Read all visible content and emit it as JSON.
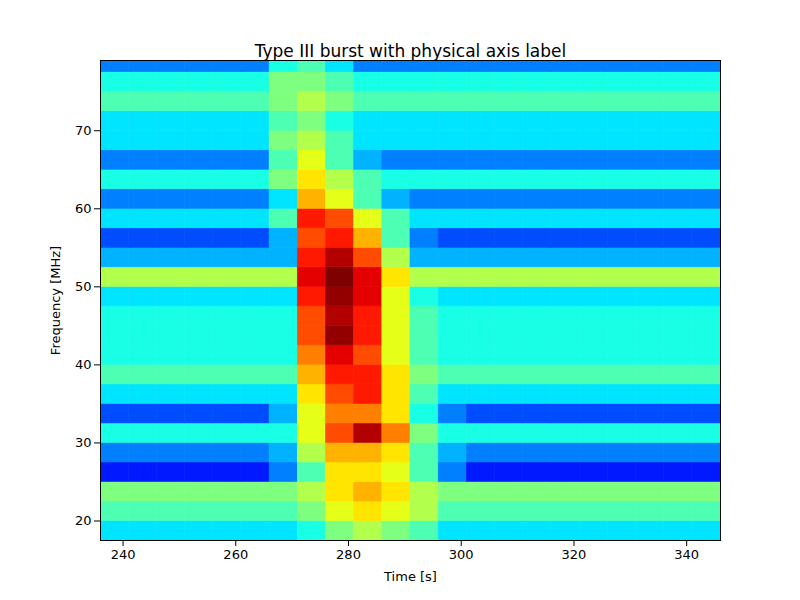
{
  "chart_data": {
    "type": "heatmap",
    "title": "Type III burst with physical axis label",
    "x_label": "Time [s]",
    "y_label": "Frequency [MHz]",
    "xlim": [
      236,
      346
    ],
    "ylim": [
      17.5,
      79
    ],
    "xticks": [
      240,
      260,
      280,
      300,
      320,
      340
    ],
    "yticks": [
      20,
      30,
      40,
      50,
      60,
      70
    ],
    "color": "jet",
    "clim": [
      0,
      10
    ],
    "x_edges": [
      236,
      241,
      246,
      251,
      256,
      261,
      266,
      271,
      276,
      281,
      286,
      291,
      296,
      301,
      306,
      311,
      316,
      321,
      326,
      331,
      336,
      341,
      346
    ],
    "y_edges": [
      17.5,
      20,
      22.5,
      25,
      27.5,
      30,
      32.5,
      35,
      37.5,
      40,
      42.5,
      45,
      47.5,
      50,
      52.5,
      55,
      57.5,
      60,
      62.5,
      65,
      67.5,
      70,
      72.5,
      75,
      77.5,
      79
    ],
    "cells": [
      [
        3.5,
        3.5,
        3.5,
        3.5,
        3.5,
        3.5,
        3.5,
        4,
        5,
        5.5,
        5,
        4.5,
        3.5,
        3.5,
        3.5,
        3.5,
        3.5,
        3.5,
        3.5,
        3.5,
        3.5,
        3.5
      ],
      [
        4.5,
        4.5,
        4.5,
        4.5,
        4.5,
        4.5,
        4.5,
        5,
        6,
        6.5,
        6,
        5.5,
        4.5,
        4.5,
        4.5,
        4.5,
        4.5,
        4.5,
        4.5,
        4.5,
        4.5,
        4.5
      ],
      [
        5,
        5,
        5,
        5,
        5,
        5,
        5,
        5.5,
        6.5,
        7,
        6.5,
        5.5,
        5,
        5,
        5,
        5,
        5,
        5,
        5,
        5,
        5,
        5
      ],
      [
        1.5,
        1.5,
        1.5,
        1.5,
        1.5,
        1.5,
        2.5,
        4.5,
        6.5,
        6.5,
        6,
        4.5,
        2.5,
        1.5,
        1.5,
        1.5,
        1.5,
        1.5,
        1.5,
        1.5,
        1.5,
        1.5
      ],
      [
        2.5,
        2.5,
        2.5,
        2.5,
        2.5,
        2.5,
        3,
        5.5,
        7,
        7,
        6.5,
        4.5,
        3,
        2.5,
        2.5,
        2.5,
        2.5,
        2.5,
        2.5,
        2.5,
        2.5,
        2.5
      ],
      [
        4,
        4,
        4,
        4,
        4,
        4,
        4,
        6,
        8,
        9.5,
        7.5,
        5,
        4,
        4,
        4,
        4,
        4,
        4,
        4,
        4,
        4,
        4
      ],
      [
        2,
        2,
        2,
        2,
        2,
        2,
        3,
        6,
        7.5,
        7.5,
        6.5,
        4,
        2.5,
        2,
        2,
        2,
        2,
        2,
        2,
        2,
        2,
        2
      ],
      [
        3.5,
        3.5,
        3.5,
        3.5,
        3.5,
        3.5,
        3.5,
        6.5,
        8,
        8.5,
        6.5,
        4.5,
        3.5,
        3.5,
        3.5,
        3.5,
        3.5,
        3.5,
        3.5,
        3.5,
        3.5,
        3.5
      ],
      [
        4.5,
        4.5,
        4.5,
        4.5,
        4.5,
        4.5,
        4.5,
        7,
        8.5,
        8.5,
        6.5,
        5,
        4.5,
        4.5,
        4.5,
        4.5,
        4.5,
        4.5,
        4.5,
        4.5,
        4.5,
        4.5
      ],
      [
        4,
        4,
        4,
        4,
        4,
        4,
        4,
        7.5,
        9,
        8,
        6,
        4.5,
        4,
        4,
        4,
        4,
        4,
        4,
        4,
        4,
        4,
        4
      ],
      [
        4,
        4,
        4,
        4,
        4,
        4,
        4,
        8,
        9.8,
        8.5,
        6,
        4.5,
        4,
        4,
        4,
        4,
        4,
        4,
        4,
        4,
        4,
        4
      ],
      [
        4,
        4,
        4,
        4,
        4,
        4,
        4,
        8,
        9.5,
        8.5,
        6,
        4.5,
        4,
        4,
        4,
        4,
        4,
        4,
        4,
        4,
        4,
        4
      ],
      [
        3.5,
        3.5,
        3.5,
        3.5,
        3.5,
        3.5,
        3.5,
        8.5,
        9.8,
        9,
        6,
        4,
        3.5,
        3.5,
        3.5,
        3.5,
        3.5,
        3.5,
        3.5,
        3.5,
        3.5,
        3.5
      ],
      [
        5.5,
        5.5,
        5.5,
        5.5,
        5.5,
        5.5,
        5.5,
        9,
        10,
        9,
        6.5,
        5.5,
        5.5,
        5.5,
        5.5,
        5.5,
        5.5,
        5.5,
        5.5,
        5.5,
        5.5,
        5.5
      ],
      [
        3,
        3,
        3,
        3,
        3,
        3,
        3,
        8.5,
        9.5,
        8,
        5.5,
        3,
        3,
        3,
        3,
        3,
        3,
        3,
        3,
        3,
        3,
        3
      ],
      [
        2,
        2,
        2,
        2,
        2,
        2,
        3,
        8,
        8.5,
        7,
        4.5,
        2.5,
        2,
        2,
        2,
        2,
        2,
        2,
        2,
        2,
        2,
        2
      ],
      [
        3.5,
        3.5,
        3.5,
        3.5,
        3.5,
        3.5,
        4.5,
        8.5,
        8,
        6,
        4.5,
        3.5,
        3.5,
        3.5,
        3.5,
        3.5,
        3.5,
        3.5,
        3.5,
        3.5,
        3.5,
        3.5
      ],
      [
        2.5,
        2.5,
        2.5,
        2.5,
        2.5,
        2.5,
        3.5,
        7,
        6,
        4.5,
        3,
        2.5,
        2.5,
        2.5,
        2.5,
        2.5,
        2.5,
        2.5,
        2.5,
        2.5,
        2.5,
        2.5
      ],
      [
        4,
        4,
        4,
        4,
        4,
        4,
        5,
        6.5,
        5.5,
        4.5,
        4,
        4,
        4,
        4,
        4,
        4,
        4,
        4,
        4,
        4,
        4,
        4
      ],
      [
        2.5,
        2.5,
        2.5,
        2.5,
        2.5,
        2.5,
        4.5,
        6,
        4.5,
        3,
        2.5,
        2.5,
        2.5,
        2.5,
        2.5,
        2.5,
        2.5,
        2.5,
        2.5,
        2.5,
        2.5,
        2.5
      ],
      [
        3.5,
        3.5,
        3.5,
        3.5,
        3.5,
        3.5,
        5,
        5.5,
        4.5,
        3.5,
        3.5,
        3.5,
        3.5,
        3.5,
        3.5,
        3.5,
        3.5,
        3.5,
        3.5,
        3.5,
        3.5,
        3.5
      ],
      [
        3.5,
        3.5,
        3.5,
        3.5,
        3.5,
        3.5,
        4.5,
        5,
        4,
        3.5,
        3.5,
        3.5,
        3.5,
        3.5,
        3.5,
        3.5,
        3.5,
        3.5,
        3.5,
        3.5,
        3.5,
        3.5
      ],
      [
        4.5,
        4.5,
        4.5,
        4.5,
        4.5,
        4.5,
        5,
        5.5,
        5,
        4.5,
        4.5,
        4.5,
        4.5,
        4.5,
        4.5,
        4.5,
        4.5,
        4.5,
        4.5,
        4.5,
        4.5,
        4.5
      ],
      [
        4,
        4,
        4,
        4,
        4,
        4,
        5,
        5,
        4.5,
        4,
        4,
        4,
        4,
        4,
        4,
        4,
        4,
        4,
        4,
        4,
        4,
        4
      ],
      [
        2.5,
        2.5,
        2.5,
        2.5,
        2.5,
        2.5,
        4,
        4.5,
        3.5,
        2.5,
        2.5,
        2.5,
        2.5,
        2.5,
        2.5,
        2.5,
        2.5,
        2.5,
        2.5,
        2.5,
        2.5,
        2.5
      ]
    ]
  }
}
